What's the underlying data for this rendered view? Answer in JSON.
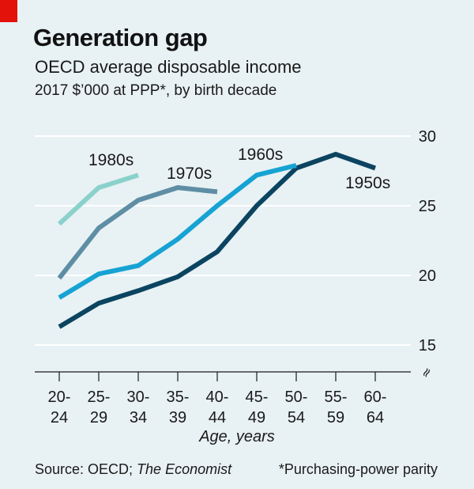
{
  "header": {
    "title": "Generation gap",
    "subtitle": "OECD average disposable income",
    "units": "2017 $’000 at PPP*, by birth decade"
  },
  "footer": {
    "source_prefix": "Source: OECD; ",
    "source_pub": "The Economist",
    "note": "*Purchasing-power parity"
  },
  "colors": {
    "background": "#e8f1f4",
    "grid": "#ffffff",
    "axis": "#1a1a1a",
    "accent_red": "#e3120b"
  },
  "chart_data": {
    "type": "line",
    "title": "Generation gap",
    "subtitle": "OECD average disposable income",
    "ylabel": "2017 $’000 at PPP*, by birth decade",
    "xlabel": "Age, years",
    "categories": [
      "20-24",
      "25-29",
      "30-34",
      "35-39",
      "40-44",
      "45-49",
      "50-54",
      "55-59",
      "60-64"
    ],
    "category_labels": [
      [
        "20-",
        "24"
      ],
      [
        "25-",
        "29"
      ],
      [
        "30-",
        "34"
      ],
      [
        "35-",
        "39"
      ],
      [
        "40-",
        "44"
      ],
      [
        "45-",
        "49"
      ],
      [
        "50-",
        "54"
      ],
      [
        "55-",
        "59"
      ],
      [
        "60-",
        "64"
      ]
    ],
    "ylim": [
      15,
      30
    ],
    "yticks": [
      15,
      20,
      25,
      30
    ],
    "axis_break_symbol": "≈",
    "grid": true,
    "series": [
      {
        "name": "1950s",
        "color": "#0b4460",
        "values": [
          16.3,
          18.0,
          18.9,
          19.9,
          21.7,
          25.0,
          27.7,
          28.7,
          27.7
        ]
      },
      {
        "name": "1960s",
        "color": "#16a3d3",
        "values": [
          18.4,
          20.1,
          20.7,
          22.6,
          25.0,
          27.2,
          27.9,
          null,
          null
        ]
      },
      {
        "name": "1970s",
        "color": "#5e8ea4",
        "values": [
          19.8,
          23.4,
          25.4,
          26.3,
          26.0,
          null,
          null,
          null,
          null
        ]
      },
      {
        "name": "1980s",
        "color": "#8bd1cb",
        "values": [
          23.7,
          26.3,
          27.2,
          null,
          null,
          null,
          null,
          null,
          null
        ]
      }
    ]
  }
}
